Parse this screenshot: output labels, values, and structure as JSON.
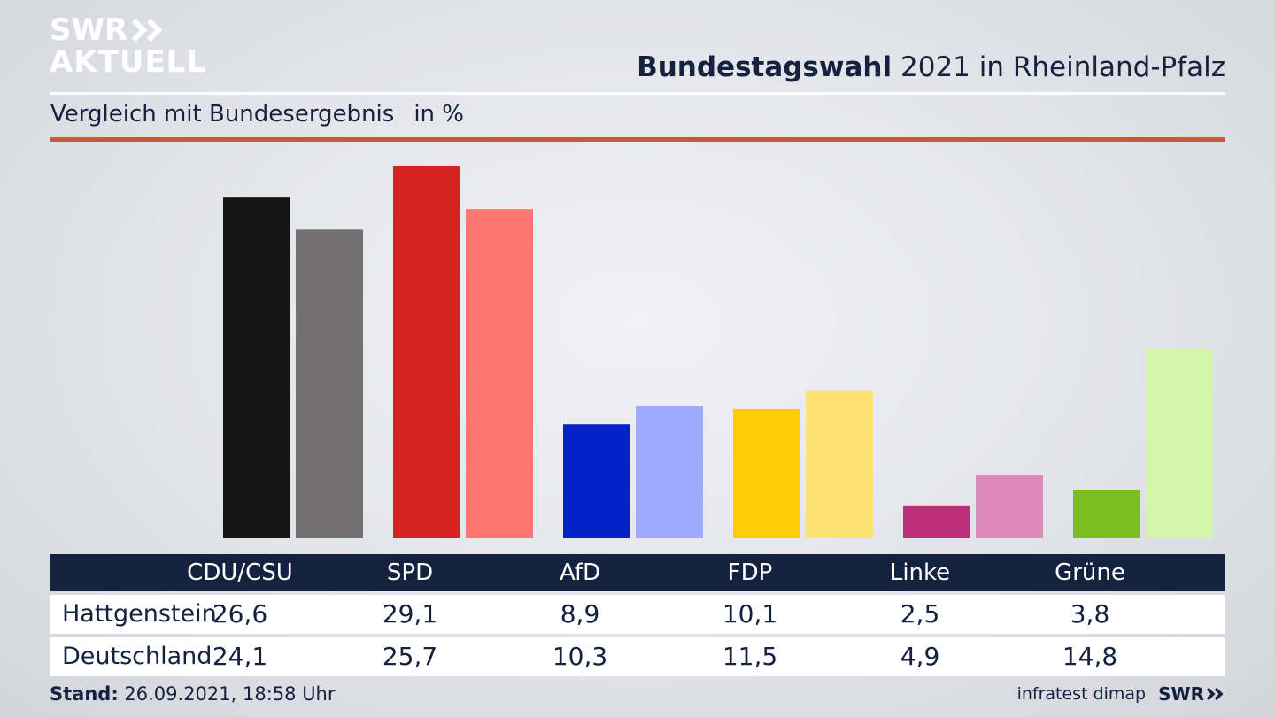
{
  "brand": {
    "line1": "SWR",
    "line2": "AKTUELL"
  },
  "header": {
    "title_bold": "Bundestagswahl",
    "title_rest": "2021 in Rheinland-Pfalz"
  },
  "subheader": {
    "text": "Vergleich mit Bundesergebnis",
    "unit": "in %"
  },
  "footer": {
    "stand_label": "Stand:",
    "stand_value": "26.09.2021, 18:58 Uhr",
    "source": "infratest dimap",
    "brand": "SWR"
  },
  "chart_data": {
    "type": "bar",
    "title": "Bundestagswahl 2021 in Rheinland-Pfalz",
    "subtitle": "Vergleich mit Bundesergebnis",
    "unit": "in %",
    "categories": [
      "CDU/CSU",
      "SPD",
      "AfD",
      "FDP",
      "Linke",
      "Grüne"
    ],
    "series": [
      {
        "name": "Hattgenstein",
        "values": [
          "26,6",
          "29,1",
          "8,9",
          "10,1",
          "2,5",
          "3,8"
        ],
        "numeric": [
          26.6,
          29.1,
          8.9,
          10.1,
          2.5,
          3.8
        ]
      },
      {
        "name": "Deutschland",
        "values": [
          "24,1",
          "25,7",
          "10,3",
          "11,5",
          "4,9",
          "14,8"
        ],
        "numeric": [
          24.1,
          25.7,
          10.3,
          11.5,
          4.9,
          14.8
        ]
      }
    ],
    "colors": {
      "Hattgenstein": [
        "#141414",
        "#d62121",
        "#0422c7",
        "#ffcc08",
        "#bd2f78",
        "#7abe21"
      ],
      "Deutschland": [
        "#727070",
        "#ff7570",
        "#9eaafe",
        "#fde173",
        "#df89bb",
        "#d4f6a9"
      ]
    },
    "ylim": [
      0,
      29.1
    ],
    "grid": false,
    "legend": "table-below"
  }
}
